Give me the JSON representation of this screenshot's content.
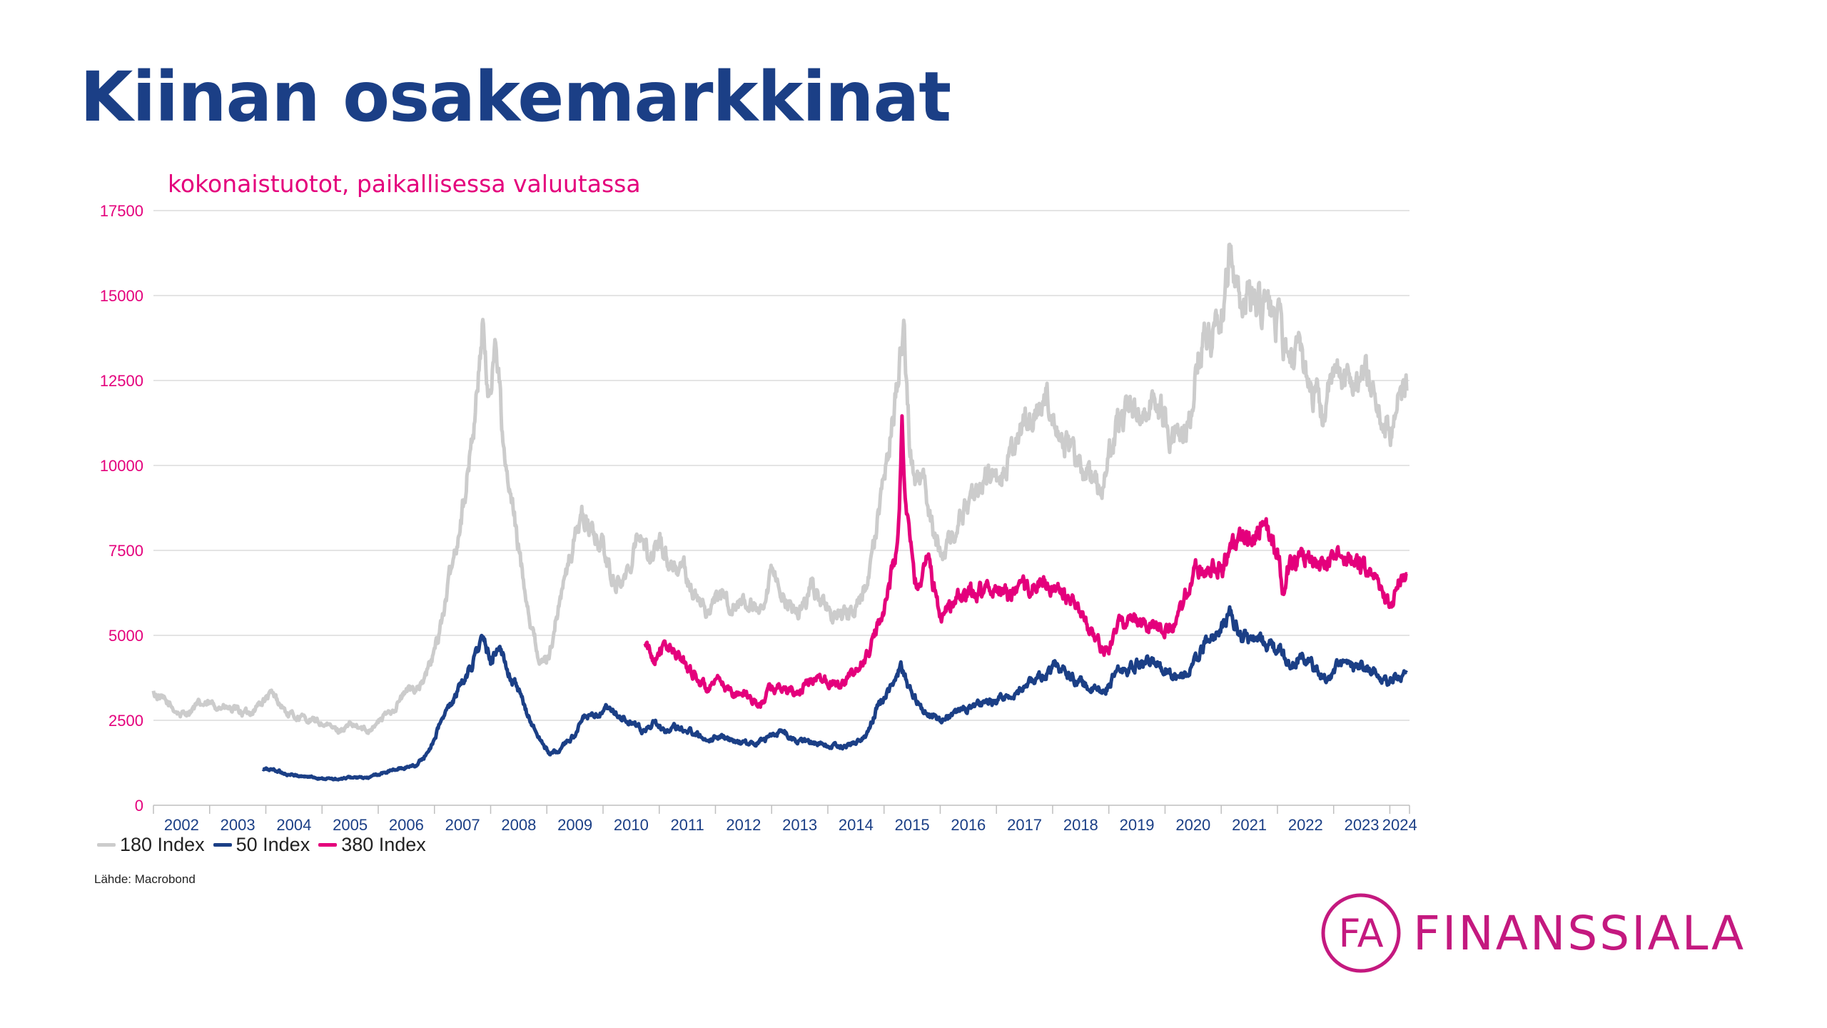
{
  "slide": {
    "title": "Kiinan osakemarkkinat",
    "subtitle": "kokonaistuotot, paikallisessa valuutassa",
    "source": "Lähde: Macrobond",
    "logo_text": "FINANSSIALA",
    "logo_mark": "FA"
  },
  "colors": {
    "title": "#1b3f86",
    "accent": "#e4007c",
    "axis_labels": "#e4007c",
    "year_labels": "#1b3f86",
    "logo": "#c4197f"
  },
  "chart_data": {
    "type": "line",
    "title": "",
    "xlabel": "",
    "ylabel": "",
    "x_unit": "year",
    "xlim": [
      2002,
      2024.35
    ],
    "ylim": [
      0,
      17500
    ],
    "y_ticks": [
      0,
      2500,
      5000,
      7500,
      10000,
      12500,
      15000,
      17500
    ],
    "y_tick_labels": [
      "0",
      "2500",
      "5000",
      "7500",
      "10000",
      "12500",
      "15000",
      "17500"
    ],
    "x_tick_labels": [
      "2002",
      "2003",
      "2004",
      "2005",
      "2006",
      "2007",
      "2008",
      "2009",
      "2010",
      "2011",
      "2012",
      "2013",
      "2014",
      "2015",
      "2016",
      "2017",
      "2018",
      "2019",
      "2020",
      "2021",
      "2022",
      "2023",
      "2024"
    ],
    "grid": "horizontal",
    "legend_position": "bottom-left",
    "series": [
      {
        "name": "180 Index",
        "color": "#cccccc",
        "points": [
          [
            2002.0,
            3300
          ],
          [
            2002.2,
            3050
          ],
          [
            2002.5,
            2650
          ],
          [
            2002.8,
            2950
          ],
          [
            2003.1,
            2950
          ],
          [
            2003.4,
            2800
          ],
          [
            2003.7,
            2700
          ],
          [
            2003.9,
            3000
          ],
          [
            2004.1,
            3250
          ],
          [
            2004.2,
            3100
          ],
          [
            2004.4,
            2650
          ],
          [
            2004.7,
            2550
          ],
          [
            2005.0,
            2400
          ],
          [
            2005.3,
            2200
          ],
          [
            2005.5,
            2350
          ],
          [
            2005.8,
            2200
          ],
          [
            2006.0,
            2450
          ],
          [
            2006.3,
            2900
          ],
          [
            2006.5,
            3350
          ],
          [
            2006.8,
            3600
          ],
          [
            2007.0,
            4500
          ],
          [
            2007.2,
            6000
          ],
          [
            2007.4,
            7800
          ],
          [
            2007.6,
            9800
          ],
          [
            2007.75,
            12000
          ],
          [
            2007.85,
            14200
          ],
          [
            2007.95,
            11900
          ],
          [
            2008.1,
            13800
          ],
          [
            2008.25,
            9900
          ],
          [
            2008.4,
            8600
          ],
          [
            2008.55,
            7000
          ],
          [
            2008.75,
            5100
          ],
          [
            2008.9,
            4100
          ],
          [
            2009.05,
            4500
          ],
          [
            2009.25,
            6200
          ],
          [
            2009.45,
            7500
          ],
          [
            2009.6,
            8600
          ],
          [
            2009.75,
            8200
          ],
          [
            2010.0,
            7600
          ],
          [
            2010.2,
            6500
          ],
          [
            2010.45,
            6800
          ],
          [
            2010.6,
            8200
          ],
          [
            2010.8,
            7300
          ],
          [
            2011.0,
            7800
          ],
          [
            2011.2,
            7100
          ],
          [
            2011.45,
            6900
          ],
          [
            2011.65,
            6100
          ],
          [
            2011.85,
            5700
          ],
          [
            2012.05,
            6200
          ],
          [
            2012.35,
            5800
          ],
          [
            2012.55,
            6000
          ],
          [
            2012.85,
            5500
          ],
          [
            2013.0,
            6800
          ],
          [
            2013.2,
            6200
          ],
          [
            2013.45,
            5600
          ],
          [
            2013.7,
            6400
          ],
          [
            2013.9,
            6000
          ],
          [
            2014.15,
            5500
          ],
          [
            2014.4,
            5600
          ],
          [
            2014.6,
            6100
          ],
          [
            2014.75,
            6800
          ],
          [
            2014.9,
            8500
          ],
          [
            2015.05,
            10200
          ],
          [
            2015.25,
            12500
          ],
          [
            2015.35,
            14300
          ],
          [
            2015.45,
            10800
          ],
          [
            2015.55,
            9300
          ],
          [
            2015.7,
            9500
          ],
          [
            2015.85,
            8200
          ],
          [
            2016.0,
            7300
          ],
          [
            2016.15,
            7900
          ],
          [
            2016.4,
            8500
          ],
          [
            2016.65,
            9200
          ],
          [
            2016.9,
            9700
          ],
          [
            2017.05,
            9500
          ],
          [
            2017.3,
            10500
          ],
          [
            2017.6,
            11500
          ],
          [
            2017.75,
            11700
          ],
          [
            2017.9,
            12200
          ],
          [
            2018.05,
            11500
          ],
          [
            2018.3,
            10300
          ],
          [
            2018.55,
            9900
          ],
          [
            2018.75,
            9500
          ],
          [
            2018.9,
            9200
          ],
          [
            2019.1,
            11000
          ],
          [
            2019.3,
            11600
          ],
          [
            2019.6,
            11700
          ],
          [
            2019.85,
            11900
          ],
          [
            2020.05,
            11100
          ],
          [
            2020.2,
            10600
          ],
          [
            2020.45,
            11600
          ],
          [
            2020.6,
            13500
          ],
          [
            2020.85,
            14000
          ],
          [
            2021.05,
            14900
          ],
          [
            2021.15,
            16300
          ],
          [
            2021.3,
            15200
          ],
          [
            2021.5,
            14800
          ],
          [
            2021.7,
            14600
          ],
          [
            2021.9,
            14500
          ],
          [
            2022.05,
            14000
          ],
          [
            2022.2,
            12800
          ],
          [
            2022.4,
            13200
          ],
          [
            2022.6,
            12400
          ],
          [
            2022.8,
            11500
          ],
          [
            2022.95,
            12300
          ],
          [
            2023.1,
            12800
          ],
          [
            2023.3,
            12400
          ],
          [
            2023.5,
            12800
          ],
          [
            2023.7,
            12300
          ],
          [
            2023.85,
            11300
          ],
          [
            2024.0,
            10900
          ],
          [
            2024.15,
            11800
          ],
          [
            2024.3,
            12200
          ]
        ]
      },
      {
        "name": "50 Index",
        "color": "#1b3f86",
        "points": [
          [
            2003.95,
            1050
          ],
          [
            2004.15,
            1050
          ],
          [
            2004.4,
            900
          ],
          [
            2004.7,
            850
          ],
          [
            2005.0,
            800
          ],
          [
            2005.3,
            750
          ],
          [
            2005.5,
            820
          ],
          [
            2005.8,
            800
          ],
          [
            2006.0,
            900
          ],
          [
            2006.2,
            1000
          ],
          [
            2006.45,
            1100
          ],
          [
            2006.7,
            1200
          ],
          [
            2006.9,
            1600
          ],
          [
            2007.1,
            2400
          ],
          [
            2007.3,
            3000
          ],
          [
            2007.5,
            3600
          ],
          [
            2007.7,
            4300
          ],
          [
            2007.85,
            4900
          ],
          [
            2008.0,
            4200
          ],
          [
            2008.1,
            4700
          ],
          [
            2008.25,
            4200
          ],
          [
            2008.45,
            3500
          ],
          [
            2008.65,
            2700
          ],
          [
            2008.85,
            2000
          ],
          [
            2009.05,
            1500
          ],
          [
            2009.25,
            1650
          ],
          [
            2009.5,
            2100
          ],
          [
            2009.7,
            2650
          ],
          [
            2009.85,
            2550
          ],
          [
            2010.05,
            2800
          ],
          [
            2010.25,
            2650
          ],
          [
            2010.5,
            2400
          ],
          [
            2010.7,
            2200
          ],
          [
            2010.9,
            2400
          ],
          [
            2011.1,
            2200
          ],
          [
            2011.35,
            2300
          ],
          [
            2011.6,
            2150
          ],
          [
            2011.9,
            1950
          ],
          [
            2012.1,
            2050
          ],
          [
            2012.4,
            1850
          ],
          [
            2012.7,
            1850
          ],
          [
            2012.95,
            2000
          ],
          [
            2013.15,
            2200
          ],
          [
            2013.45,
            1900
          ],
          [
            2013.75,
            1850
          ],
          [
            2014.0,
            1750
          ],
          [
            2014.25,
            1750
          ],
          [
            2014.5,
            1850
          ],
          [
            2014.7,
            2100
          ],
          [
            2014.9,
            3000
          ],
          [
            2015.1,
            3400
          ],
          [
            2015.3,
            4100
          ],
          [
            2015.45,
            3400
          ],
          [
            2015.55,
            3100
          ],
          [
            2015.75,
            2700
          ],
          [
            2016.0,
            2500
          ],
          [
            2016.3,
            2750
          ],
          [
            2016.6,
            2900
          ],
          [
            2016.9,
            3000
          ],
          [
            2017.15,
            3150
          ],
          [
            2017.5,
            3500
          ],
          [
            2017.85,
            3850
          ],
          [
            2018.05,
            4150
          ],
          [
            2018.35,
            3800
          ],
          [
            2018.65,
            3450
          ],
          [
            2018.9,
            3300
          ],
          [
            2019.15,
            3900
          ],
          [
            2019.45,
            4100
          ],
          [
            2019.8,
            4200
          ],
          [
            2020.05,
            4000
          ],
          [
            2020.25,
            3700
          ],
          [
            2020.5,
            4100
          ],
          [
            2020.75,
            4850
          ],
          [
            2021.0,
            5100
          ],
          [
            2021.15,
            5650
          ],
          [
            2021.35,
            5000
          ],
          [
            2021.6,
            4900
          ],
          [
            2021.85,
            4750
          ],
          [
            2022.05,
            4500
          ],
          [
            2022.25,
            4100
          ],
          [
            2022.45,
            4400
          ],
          [
            2022.7,
            3950
          ],
          [
            2022.9,
            3700
          ],
          [
            2023.1,
            4200
          ],
          [
            2023.35,
            4050
          ],
          [
            2023.6,
            4000
          ],
          [
            2023.8,
            3800
          ],
          [
            2024.0,
            3600
          ],
          [
            2024.15,
            3800
          ],
          [
            2024.3,
            3900
          ]
        ]
      },
      {
        "name": "380 Index",
        "color": "#e4007c",
        "points": [
          [
            2010.75,
            4700
          ],
          [
            2010.9,
            4300
          ],
          [
            2011.0,
            4650
          ],
          [
            2011.2,
            4600
          ],
          [
            2011.45,
            4200
          ],
          [
            2011.65,
            3800
          ],
          [
            2011.85,
            3400
          ],
          [
            2012.05,
            3600
          ],
          [
            2012.3,
            3300
          ],
          [
            2012.55,
            3300
          ],
          [
            2012.8,
            2900
          ],
          [
            2012.95,
            3400
          ],
          [
            2013.15,
            3500
          ],
          [
            2013.4,
            3250
          ],
          [
            2013.6,
            3500
          ],
          [
            2013.8,
            3800
          ],
          [
            2014.0,
            3700
          ],
          [
            2014.25,
            3600
          ],
          [
            2014.5,
            3900
          ],
          [
            2014.7,
            4400
          ],
          [
            2014.9,
            5300
          ],
          [
            2015.1,
            6500
          ],
          [
            2015.25,
            7800
          ],
          [
            2015.32,
            11200
          ],
          [
            2015.4,
            8500
          ],
          [
            2015.5,
            7200
          ],
          [
            2015.6,
            6200
          ],
          [
            2015.75,
            7500
          ],
          [
            2015.9,
            6300
          ],
          [
            2016.0,
            5600
          ],
          [
            2016.15,
            5900
          ],
          [
            2016.4,
            6100
          ],
          [
            2016.65,
            6300
          ],
          [
            2016.9,
            6400
          ],
          [
            2017.1,
            6300
          ],
          [
            2017.3,
            6100
          ],
          [
            2017.6,
            6400
          ],
          [
            2017.85,
            6500
          ],
          [
            2018.05,
            6300
          ],
          [
            2018.35,
            6000
          ],
          [
            2018.6,
            5400
          ],
          [
            2018.85,
            4700
          ],
          [
            2019.0,
            4500
          ],
          [
            2019.15,
            5300
          ],
          [
            2019.35,
            5500
          ],
          [
            2019.6,
            5400
          ],
          [
            2019.85,
            5300
          ],
          [
            2020.1,
            5200
          ],
          [
            2020.3,
            5700
          ],
          [
            2020.5,
            6800
          ],
          [
            2020.75,
            7000
          ],
          [
            2021.0,
            7000
          ],
          [
            2021.15,
            7400
          ],
          [
            2021.35,
            7700
          ],
          [
            2021.6,
            8200
          ],
          [
            2021.8,
            8000
          ],
          [
            2022.0,
            7400
          ],
          [
            2022.1,
            6400
          ],
          [
            2022.25,
            7200
          ],
          [
            2022.5,
            7200
          ],
          [
            2022.75,
            7000
          ],
          [
            2023.0,
            7200
          ],
          [
            2023.25,
            7300
          ],
          [
            2023.5,
            7000
          ],
          [
            2023.7,
            6800
          ],
          [
            2023.85,
            6500
          ],
          [
            2024.0,
            5800
          ],
          [
            2024.15,
            6600
          ],
          [
            2024.3,
            6800
          ]
        ]
      }
    ]
  }
}
